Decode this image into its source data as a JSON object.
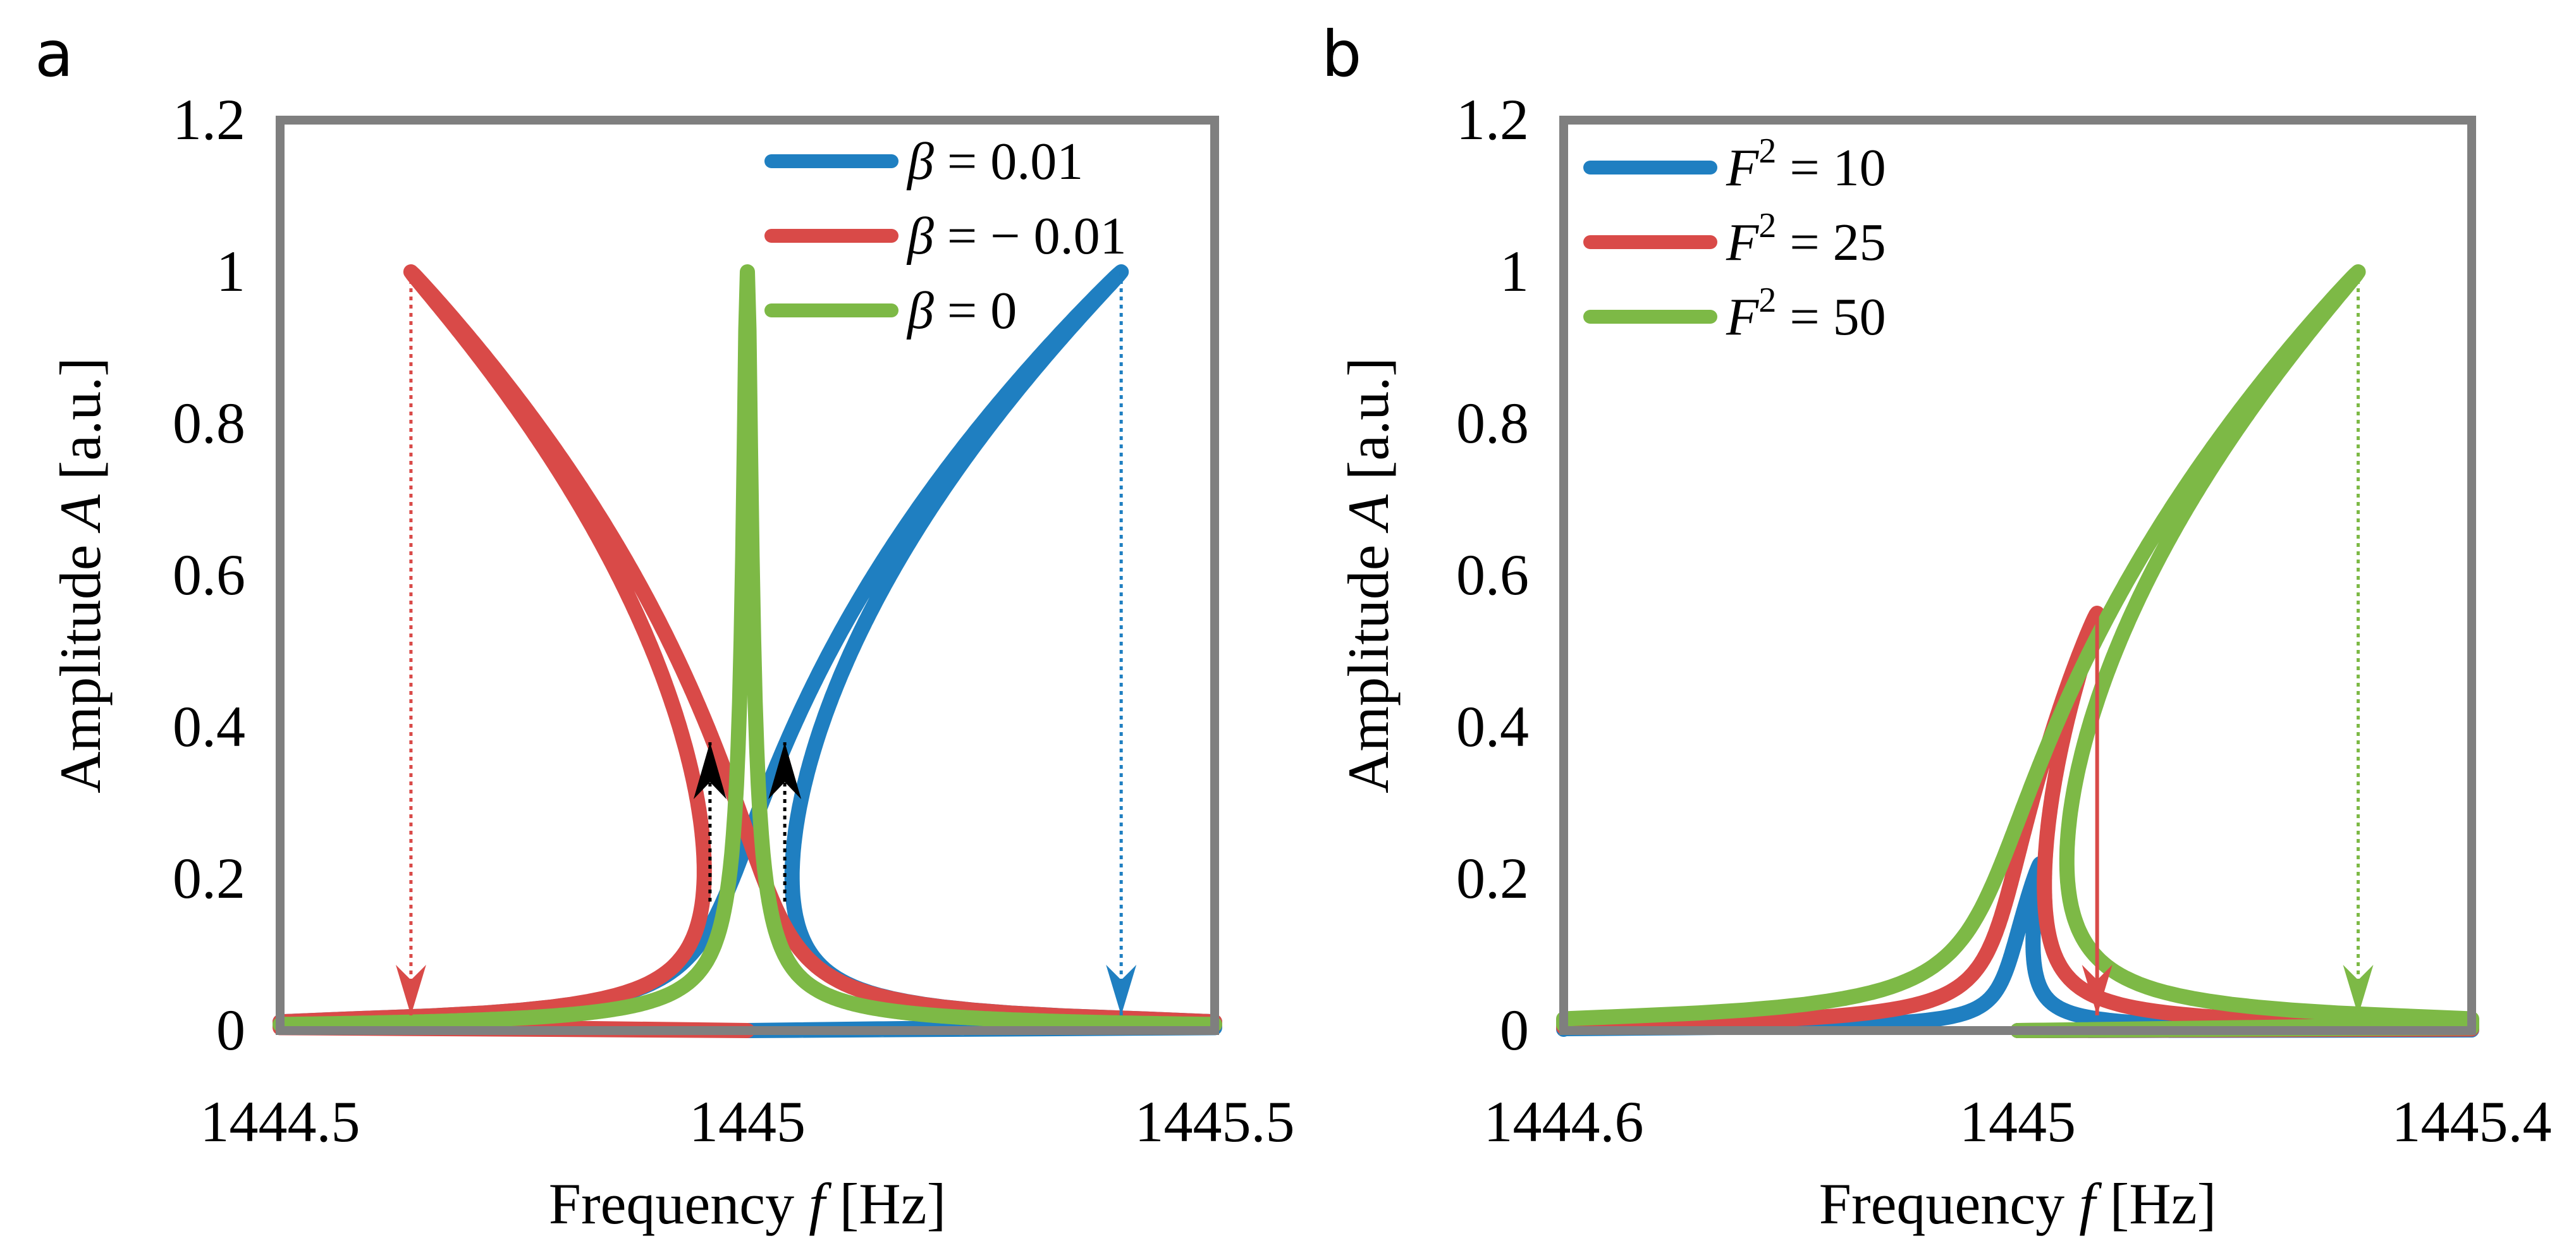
{
  "chart_data": [
    {
      "panel": "a",
      "type": "line",
      "xlabel_prefix": "Frequency ",
      "xlabel_var": "f",
      "xlabel_unit": " [Hz]",
      "ylabel_prefix": "Amplitude ",
      "ylabel_var": "A",
      "ylabel_unit": " [a.u.]",
      "xlim": [
        1444.5,
        1445.5
      ],
      "ylim": [
        0,
        1.2
      ],
      "x_ticks": [
        1444.5,
        1445,
        1445.5
      ],
      "x_tick_labels": [
        "1444.5",
        "1445",
        "1445.5"
      ],
      "y_ticks": [
        0,
        0.2,
        0.4,
        0.6,
        0.8,
        1,
        1.2
      ],
      "y_tick_labels": [
        "0",
        "0.2",
        "0.4",
        "0.6",
        "0.8",
        "1",
        "1.2"
      ],
      "legend_position": "top-right",
      "series": [
        {
          "name": "β = 0.01",
          "legend_var": "β",
          "legend_rest": " = 0.01",
          "color": "#1f7fc1",
          "kind": "duffing",
          "f0": 1445,
          "beta": 0.01,
          "f_peak": 1445.4,
          "a_peak": 1.0,
          "f_jump_up": 1445.04
        },
        {
          "name": "β = − 0.01",
          "legend_var": "β",
          "legend_rest": " = − 0.01",
          "color": "#d94a48",
          "kind": "duffing",
          "f0": 1445,
          "beta": -0.01,
          "f_peak": 1444.64,
          "a_peak": 1.0,
          "f_jump_up": 1444.96
        },
        {
          "name": "β = 0",
          "legend_var": "β",
          "legend_rest": " = 0",
          "color": "#7db946",
          "kind": "linear",
          "f0": 1445,
          "a_peak": 1.0
        }
      ],
      "annotations": [
        {
          "type": "jump-down",
          "x": 1444.64,
          "y_from": 1.0,
          "y_to": 0.02,
          "color": "#d94a48"
        },
        {
          "type": "jump-down",
          "x": 1445.4,
          "y_from": 1.0,
          "y_to": 0.02,
          "color": "#1f7fc1"
        },
        {
          "type": "jump-up",
          "x": 1444.96,
          "y_from": 0.17,
          "y_to": 0.38,
          "color": "#000000"
        },
        {
          "type": "jump-up",
          "x": 1445.04,
          "y_from": 0.17,
          "y_to": 0.38,
          "color": "#000000"
        }
      ]
    },
    {
      "panel": "b",
      "type": "line",
      "xlabel_prefix": "Frequency ",
      "xlabel_var": "f",
      "xlabel_unit": " [Hz]",
      "ylabel_prefix": "Amplitude ",
      "ylabel_var": "A",
      "ylabel_unit": " [a.u.]",
      "xlim": [
        1444.6,
        1445.4
      ],
      "ylim": [
        0,
        1.2
      ],
      "x_ticks": [
        1444.6,
        1445,
        1445.4
      ],
      "x_tick_labels": [
        "1444.6",
        "1445",
        "1445.4"
      ],
      "y_ticks": [
        0,
        0.2,
        0.4,
        0.6,
        0.8,
        1,
        1.2
      ],
      "y_tick_labels": [
        "0",
        "0.2",
        "0.4",
        "0.6",
        "0.8",
        "1",
        "1.2"
      ],
      "legend_position": "top-left",
      "series": [
        {
          "name": "F² = 10",
          "legend_var": "F",
          "legend_sup": "2",
          "legend_rest": " = 10",
          "color": "#1f7fc1",
          "kind": "duffing",
          "f0": 1445,
          "beta": 0.01,
          "f_peak": 1445.004,
          "a_peak": 0.22
        },
        {
          "name": "F² = 25",
          "legend_var": "F",
          "legend_sup": "2",
          "legend_rest": " = 25",
          "color": "#d94a48",
          "kind": "duffing",
          "f0": 1445,
          "beta": 0.01,
          "f_peak": 1445.07,
          "a_peak": 0.55,
          "f_jump_down": 1445.07
        },
        {
          "name": "F² = 50",
          "legend_var": "F",
          "legend_sup": "2",
          "legend_rest": " = 50",
          "color": "#7db946",
          "kind": "duffing",
          "f0": 1445,
          "beta": 0.01,
          "f_peak": 1445.3,
          "a_peak": 1.0,
          "f_jump_down": 1445.3
        }
      ],
      "annotations": [
        {
          "type": "jump-down-solid",
          "x": 1445.07,
          "y_from": 0.55,
          "y_to": 0.02,
          "color": "#d94a48"
        },
        {
          "type": "jump-down",
          "x": 1445.3,
          "y_from": 1.0,
          "y_to": 0.02,
          "color": "#7db946"
        }
      ]
    }
  ]
}
